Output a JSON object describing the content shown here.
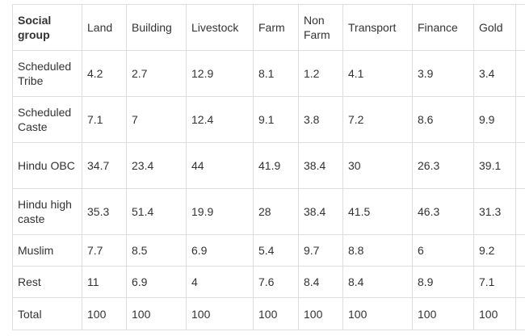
{
  "table": {
    "headers": [
      "Social group",
      "Land",
      "Building",
      "Livestock",
      "Farm",
      "Non Farm",
      "Transport",
      "Finance",
      "Gold",
      ""
    ],
    "rows": [
      [
        "Scheduled Tribe",
        "4.2",
        "2.7",
        "12.9",
        "8.1",
        "1.2",
        "4.1",
        "3.9",
        "3.4",
        ""
      ],
      [
        "Scheduled Caste",
        "7.1",
        "7",
        "12.4",
        "9.1",
        "3.8",
        "7.2",
        "8.6",
        "9.9",
        ""
      ],
      [
        "Hindu OBC",
        "34.7",
        "23.4",
        "44",
        "41.9",
        "38.4",
        "30",
        "26.3",
        "39.1",
        ""
      ],
      [
        "Hindu high caste",
        "35.3",
        "51.4",
        "19.9",
        "28",
        "38.4",
        "41.5",
        "46.3",
        "31.3",
        ""
      ],
      [
        "Muslim",
        "7.7",
        "8.5",
        "6.9",
        "5.4",
        "9.7",
        "8.8",
        "6",
        "9.2",
        ""
      ],
      [
        "Rest",
        "11",
        "6.9",
        "4",
        "7.6",
        "8.4",
        "8.4",
        "8.9",
        "7.1",
        ""
      ],
      [
        "Total",
        "100",
        "100",
        "100",
        "100",
        "100",
        "100",
        "100",
        "100",
        ""
      ]
    ]
  }
}
